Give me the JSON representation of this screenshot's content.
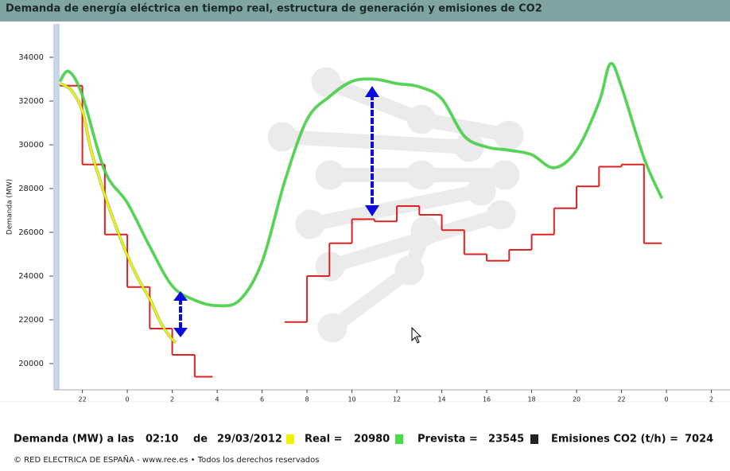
{
  "chart_data": {
    "type": "line",
    "title": "Demanda de energía eléctrica en tiempo real, estructura de generación y emisiones de CO2",
    "ylabel": "Demanda (MW)",
    "xlim": [
      20.74,
      50.83
    ],
    "ylim": [
      18800,
      35527
    ],
    "xticks": [
      22,
      {
        "value": 24,
        "label": "0"
      },
      {
        "value": 26,
        "label": "2"
      },
      {
        "value": 28,
        "label": "4"
      },
      {
        "value": 30,
        "label": "6"
      },
      {
        "value": 32,
        "label": "8"
      },
      {
        "value": 34,
        "label": "10"
      },
      {
        "value": 36,
        "label": "12"
      },
      {
        "value": 38,
        "label": "14"
      },
      {
        "value": 40,
        "label": "16"
      },
      {
        "value": 42,
        "label": "18"
      },
      {
        "value": 44,
        "label": "20"
      },
      {
        "value": 46,
        "label": "22"
      },
      {
        "value": 48,
        "label": "0"
      },
      {
        "value": 50,
        "label": "2"
      }
    ],
    "yticks": [
      20000,
      22000,
      24000,
      26000,
      28000,
      30000,
      32000,
      34000
    ],
    "series": [
      {
        "color": "#dd2222",
        "step": true,
        "x": [
          21,
          22,
          23,
          24,
          25,
          26,
          27,
          27.8,
          31,
          32,
          33,
          34,
          35,
          36,
          37,
          38,
          39,
          40,
          41,
          42,
          43,
          44,
          45,
          46,
          47,
          47.8
        ],
        "values": [
          32700,
          29100,
          25900,
          23500,
          21600,
          20400,
          19400,
          null,
          21900,
          24000,
          25500,
          26600,
          26500,
          27200,
          26800,
          26100,
          25000,
          24700,
          25200,
          25900,
          27100,
          28100,
          29000,
          29100,
          25500,
          null
        ]
      },
      {
        "name": "Prevista",
        "color": "#44dd44",
        "x": [
          21,
          21.4,
          22,
          23,
          24,
          25,
          26,
          27,
          28,
          29,
          30,
          31,
          32,
          33,
          34,
          35,
          36,
          37,
          38,
          39,
          40,
          41,
          42,
          43,
          44,
          45,
          45.5,
          46,
          47,
          47.8
        ],
        "values": [
          32900,
          33350,
          32250,
          28800,
          27350,
          25350,
          23550,
          22900,
          22650,
          22900,
          24650,
          28300,
          31150,
          32200,
          32900,
          33000,
          32800,
          32650,
          32100,
          30400,
          29900,
          29750,
          29550,
          28950,
          29750,
          31950,
          33700,
          32650,
          29400,
          27550
        ]
      },
      {
        "name": "Real",
        "color": "#f2f200",
        "x": [
          21,
          21.5,
          22,
          22.4,
          23,
          23.5,
          24,
          24.5,
          25,
          25.5,
          26,
          26.17
        ],
        "values": [
          32800,
          32500,
          31550,
          29700,
          27700,
          26250,
          24950,
          23850,
          22950,
          21850,
          21100,
          20980
        ]
      }
    ]
  },
  "footer": {
    "label": "Demanda (MW) a las",
    "time": "02:10",
    "de": "de",
    "date": "29/03/2012",
    "real_label": "Real =",
    "real_value": 20980,
    "prevista_label": "Prevista =",
    "prevista_value": 23545,
    "emisiones_label": "Emisiones CO2 (t/h) =",
    "emisiones_value": 7024,
    "emisiones_color": "#222222",
    "copyright": "© RED ELECTRICA DE ESPAÑA - www.ree.es • Todos los derechos reservados"
  }
}
